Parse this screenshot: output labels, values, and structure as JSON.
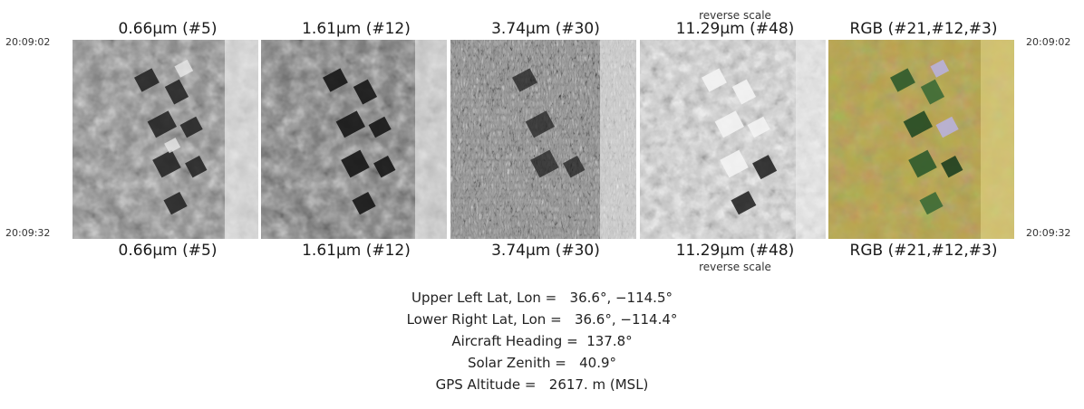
{
  "times": {
    "top_left": "20:09:02",
    "bottom_left": "20:09:32",
    "top_right": "20:09:02",
    "bottom_right": "20:09:32"
  },
  "panels": [
    {
      "label_top": "0.66μm (#5)",
      "label_bottom": "0.66μm (#5)",
      "reverse_top": "",
      "reverse_bottom": ""
    },
    {
      "label_top": "1.61μm (#12)",
      "label_bottom": "1.61μm (#12)",
      "reverse_top": "",
      "reverse_bottom": ""
    },
    {
      "label_top": "3.74μm (#30)",
      "label_bottom": "3.74μm (#30)",
      "reverse_top": "",
      "reverse_bottom": ""
    },
    {
      "label_top": "11.29μm (#48)",
      "label_bottom": "11.29μm (#48)",
      "reverse_top": "reverse scale",
      "reverse_bottom": "reverse scale"
    },
    {
      "label_top": "RGB (#21,#12,#3)",
      "label_bottom": "RGB (#21,#12,#3)",
      "reverse_top": "",
      "reverse_bottom": ""
    }
  ],
  "metadata": [
    "Upper Left Lat, Lon =   36.6°, −114.5°",
    "Lower Right Lat, Lon =   36.6°, −114.4°",
    "Aircraft Heading =  137.8°",
    "Solar Zenith =   40.9°",
    "GPS Altitude =   2617. m (MSL)"
  ],
  "colors": {
    "rgb_terrain": "#b7a54c",
    "rgb_vegetation": "#2e5a2c",
    "rgb_lavender": "#b9b2dc"
  }
}
